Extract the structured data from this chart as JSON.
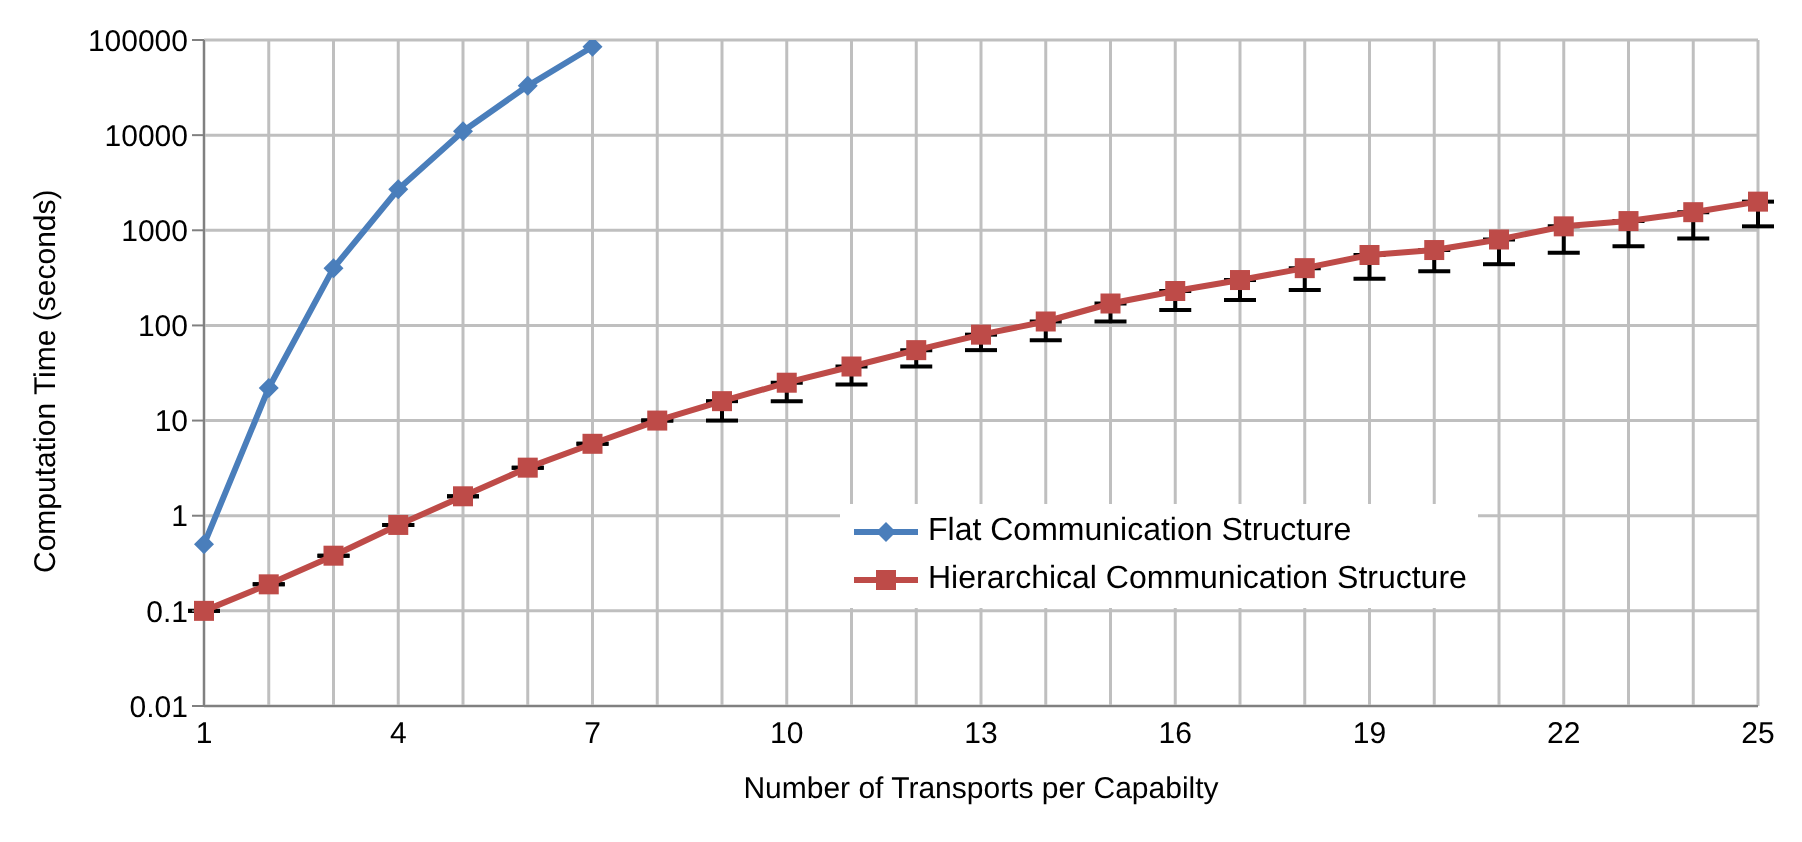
{
  "chart_data": {
    "type": "line",
    "xlabel": "Number of Transports per Capabilty",
    "ylabel": "Computation Time (seconds)",
    "categories": [
      "1",
      null,
      null,
      "4",
      null,
      null,
      "7",
      null,
      null,
      "10",
      null,
      null,
      "13",
      null,
      null,
      "16",
      null,
      null,
      "19",
      null,
      null,
      "22",
      null,
      null,
      "25"
    ],
    "series": [
      {
        "name": "Flat Communication Structure",
        "color": "#4a7ebb",
        "marker": "diamond",
        "values": [
          0.5,
          22,
          400,
          2700,
          11000,
          33000,
          85000,
          null,
          null,
          null,
          null,
          null,
          null,
          null,
          null,
          null,
          null,
          null,
          null,
          null,
          null,
          null,
          null,
          null,
          null
        ]
      },
      {
        "name": "Hierarchical Communication Structure",
        "color": "#be4b48",
        "marker": "square",
        "values": [
          0.1,
          0.19,
          0.38,
          0.8,
          1.6,
          3.2,
          5.7,
          10,
          16,
          25,
          37,
          55,
          80,
          110,
          170,
          230,
          300,
          400,
          550,
          620,
          800,
          1100,
          1250,
          1550,
          2000
        ],
        "errors": [
          null,
          null,
          null,
          null,
          null,
          null,
          null,
          null,
          [
            10,
            16
          ],
          [
            16,
            25
          ],
          [
            24,
            37
          ],
          [
            37,
            55
          ],
          [
            55,
            80
          ],
          [
            70,
            110
          ],
          [
            110,
            170
          ],
          [
            145,
            230
          ],
          [
            185,
            300
          ],
          [
            235,
            400
          ],
          [
            310,
            550
          ],
          [
            370,
            620
          ],
          [
            440,
            800
          ],
          [
            580,
            1100
          ],
          [
            680,
            1250
          ],
          [
            820,
            1550
          ],
          [
            1100,
            2000
          ]
        ]
      }
    ],
    "log": "y",
    "ylim": [
      0.01,
      100000
    ],
    "yticks": [
      0.01,
      0.1,
      1,
      10,
      100,
      1000,
      10000,
      100000
    ],
    "grid": true,
    "legend": "bottom right",
    "line_style": "solid"
  }
}
